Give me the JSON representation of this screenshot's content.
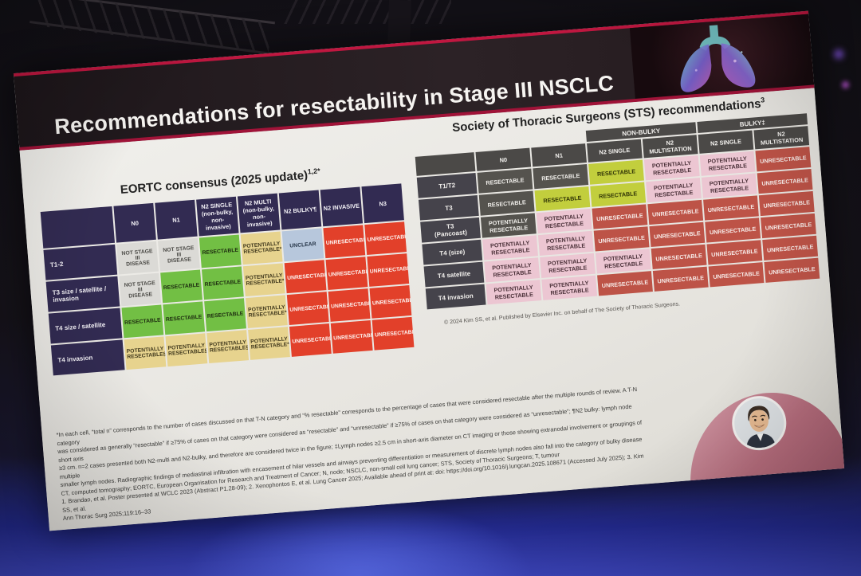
{
  "slide": {
    "title": "Recommendations for resectability in Stage III NSCLC"
  },
  "eortc": {
    "title": "EORTC consensus (2025 update)",
    "title_superscript": "1,2*",
    "columns": [
      "N0",
      "N1",
      "N2 SINGLE\n(non-bulky,\nnon-invasive)",
      "N2 MULTI\n(non-bulky,\nnon-invasive)",
      "N2 BULKY¶",
      "N2 INVASIVE",
      "N3"
    ],
    "rows": [
      {
        "label": "T1-2",
        "cells": [
          {
            "text": "NOT STAGE III\nDISEASE",
            "type": "na"
          },
          {
            "text": "NOT STAGE III\nDISEASE",
            "type": "na"
          },
          {
            "text": "RESECTABLE",
            "type": "green"
          },
          {
            "text": "POTENTIALLY\nRESECTABLE*",
            "type": "yellow"
          },
          {
            "text": "UNCLEAR",
            "type": "blue"
          },
          {
            "text": "UNRESECTABLE",
            "type": "red"
          },
          {
            "text": "UNRESECTABLE",
            "type": "red"
          }
        ]
      },
      {
        "label": "T3 size / satellite /\ninvasion",
        "cells": [
          {
            "text": "NOT STAGE III\nDISEASE",
            "type": "na"
          },
          {
            "text": "RESECTABLE",
            "type": "green"
          },
          {
            "text": "RESECTABLE",
            "type": "green"
          },
          {
            "text": "POTENTIALLY\nRESECTABLE*",
            "type": "yellow"
          },
          {
            "text": "UNRESECTABLE",
            "type": "red"
          },
          {
            "text": "UNRESECTABLE",
            "type": "red"
          },
          {
            "text": "UNRESECTABLE",
            "type": "red"
          }
        ]
      },
      {
        "label": "T4 size / satellite",
        "cells": [
          {
            "text": "RESECTABLE",
            "type": "green"
          },
          {
            "text": "RESECTABLE",
            "type": "green"
          },
          {
            "text": "RESECTABLE",
            "type": "green"
          },
          {
            "text": "POTENTIALLY\nRESECTABLE*",
            "type": "yellow"
          },
          {
            "text": "UNRESECTABLE",
            "type": "red"
          },
          {
            "text": "UNRESECTABLE",
            "type": "red"
          },
          {
            "text": "UNRESECTABLE",
            "type": "red"
          }
        ]
      },
      {
        "label": "T4 invasion",
        "cells": [
          {
            "text": "POTENTIALLY\nRESECTABLE§",
            "type": "yellow"
          },
          {
            "text": "POTENTIALLY\nRESECTABLE§",
            "type": "yellow"
          },
          {
            "text": "POTENTIALLY\nRESECTABLE§",
            "type": "yellow"
          },
          {
            "text": "POTENTIALLY\nRESECTABLE*§",
            "type": "yellow"
          },
          {
            "text": "UNRESECTABLE",
            "type": "red"
          },
          {
            "text": "UNRESECTABLE",
            "type": "red"
          },
          {
            "text": "UNRESECTABLE",
            "type": "red"
          }
        ]
      }
    ]
  },
  "sts": {
    "title": "Society of Thoracic Surgeons (STS) recommendations",
    "title_superscript": "3",
    "group_headers": [
      {
        "label": "",
        "span": 3,
        "filled": false
      },
      {
        "label": "NON-BULKY",
        "span": 2,
        "filled": true
      },
      {
        "label": "BULKY‡",
        "span": 2,
        "filled": true
      }
    ],
    "columns": [
      "N0",
      "N1",
      "N2 SINGLE",
      "N2\nMULTISTATION",
      "N2 SINGLE",
      "N2\nMULTISTATION"
    ],
    "rows": [
      {
        "label": "T1/T2",
        "cells": [
          {
            "text": "RESECTABLE",
            "type": "dark"
          },
          {
            "text": "RESECTABLE",
            "type": "dark"
          },
          {
            "text": "RESECTABLE",
            "type": "lime"
          },
          {
            "text": "POTENTIALLY\nRESECTABLE",
            "type": "pink"
          },
          {
            "text": "POTENTIALLY\nRESECTABLE",
            "type": "pink"
          },
          {
            "text": "UNRESECTABLE",
            "type": "brick"
          }
        ]
      },
      {
        "label": "T3",
        "cells": [
          {
            "text": "RESECTABLE",
            "type": "dark"
          },
          {
            "text": "RESECTABLE",
            "type": "lime"
          },
          {
            "text": "RESECTABLE",
            "type": "lime"
          },
          {
            "text": "POTENTIALLY\nRESECTABLE",
            "type": "pink"
          },
          {
            "text": "POTENTIALLY\nRESECTABLE",
            "type": "pink"
          },
          {
            "text": "UNRESECTABLE",
            "type": "brick"
          }
        ]
      },
      {
        "label": "T3\n(Pancoast)",
        "cells": [
          {
            "text": "POTENTIALLY\nRESECTABLE",
            "type": "dark"
          },
          {
            "text": "POTENTIALLY\nRESECTABLE",
            "type": "pink"
          },
          {
            "text": "UNRESECTABLE",
            "type": "brick"
          },
          {
            "text": "UNRESECTABLE",
            "type": "brick"
          },
          {
            "text": "UNRESECTABLE",
            "type": "brick"
          },
          {
            "text": "UNRESECTABLE",
            "type": "brick"
          }
        ]
      },
      {
        "label": "T4 (size)",
        "cells": [
          {
            "text": "POTENTIALLY\nRESECTABLE",
            "type": "pink"
          },
          {
            "text": "POTENTIALLY\nRESECTABLE",
            "type": "pink"
          },
          {
            "text": "UNRESECTABLE",
            "type": "brick"
          },
          {
            "text": "UNRESECTABLE",
            "type": "brick"
          },
          {
            "text": "UNRESECTABLE",
            "type": "brick"
          },
          {
            "text": "UNRESECTABLE",
            "type": "brick"
          }
        ]
      },
      {
        "label": "T4 satellite",
        "cells": [
          {
            "text": "POTENTIALLY\nRESECTABLE",
            "type": "pink"
          },
          {
            "text": "POTENTIALLY\nRESECTABLE",
            "type": "pink"
          },
          {
            "text": "POTENTIALLY\nRESECTABLE",
            "type": "pink"
          },
          {
            "text": "UNRESECTABLE",
            "type": "brick"
          },
          {
            "text": "UNRESECTABLE",
            "type": "brick"
          },
          {
            "text": "UNRESECTABLE",
            "type": "brick"
          }
        ]
      },
      {
        "label": "T4 invasion",
        "cells": [
          {
            "text": "POTENTIALLY\nRESECTABLE",
            "type": "pink"
          },
          {
            "text": "POTENTIALLY\nRESECTABLE",
            "type": "pink"
          },
          {
            "text": "UNRESECTABLE",
            "type": "brick"
          },
          {
            "text": "UNRESECTABLE",
            "type": "brick"
          },
          {
            "text": "UNRESECTABLE",
            "type": "brick"
          },
          {
            "text": "UNRESECTABLE",
            "type": "brick"
          }
        ]
      }
    ],
    "copyright": "© 2024 Kim SS, et al. Published by Elsevier Inc. on behalf of The Society of Thoracic Surgeons."
  },
  "footnotes": {
    "lines": [
      "*In each cell, “total n” corresponds to the number of cases discussed on that T-N category and “% resectable” corresponds to the percentage of cases that were considered resectable after the multiple rounds of review. A T-N category",
      "was considered as generally “resectable” if ≥75% of cases on that category were considered as “resectable” and “unresectable” if ≥75% of cases on that category were considered as “unresectable”; ¶N2 bulky: lymph node short axis",
      "≥3 cm. n=2 cases presented both N2-multi and N2-bulky, and therefore are considered twice in the figure; ‡Lymph nodes ≥2.5 cm in short-axis diameter on CT imaging or those showing extranodal involvement or groupings of multiple",
      "smaller lymph nodes. Radiographic findings of mediastinal infiltration with encasement of hilar vessels and airways preventing differentiation or measurement of discrete lymph nodes also fall into the category of bulky disease",
      "CT, computed tomography; EORTC, European Organisation for Research and Treatment of Cancer; N, node; NSCLC, non-small cell lung cancer; STS, Society of Thoracic Surgeons; T, tumour",
      "1. Brandao, et al. Poster presented at WCLC 2023 (Abstract P1.28-09); 2. Xenophontos E, et al. Lung Cancer 2025; Available ahead of print at: doi: https://doi.org/10.1016/j.lungcan.2025.108671 (Accessed July 2025); 3. Kim SS, et al.",
      "Ann Thorac Surg 2025;119:16–33"
    ]
  },
  "icons": {
    "header_art": "lungs-icon",
    "speaker": "speaker-face-icon"
  },
  "colors": {
    "slide_accent": "#a01338",
    "eortc_header": "#322b52",
    "eortc_not_stage_iii": "#dbdad6",
    "eortc_resectable": "#72bf44",
    "eortc_potentially_resectable": "#e7d38e",
    "eortc_unclear": "#b7c7dc",
    "eortc_unresectable": "#e2402a",
    "sts_header": "#4b4947",
    "sts_resectable_dark": "#55534e",
    "sts_resectable_lime": "#c2ce3d",
    "sts_potentially_resectable_pink": "#ecc6d2",
    "sts_unresectable_brick": "#bd5347"
  }
}
